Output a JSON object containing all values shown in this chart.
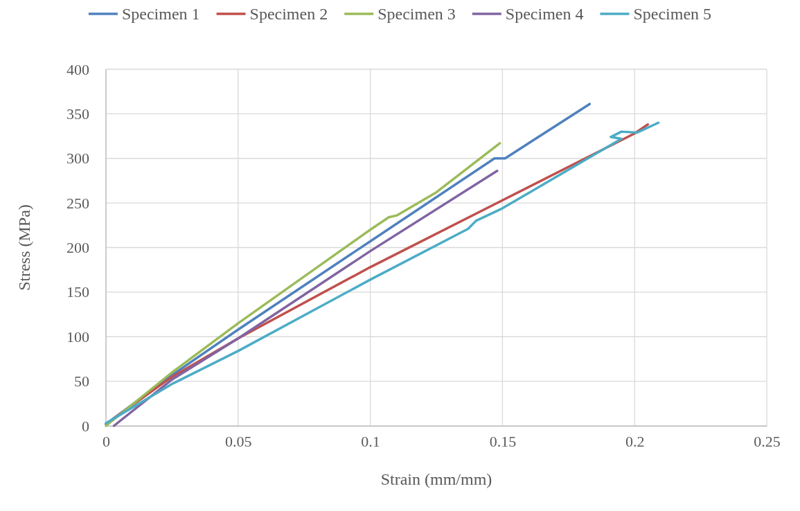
{
  "chart_data": {
    "type": "line",
    "xlabel": "Strain (mm/mm)",
    "ylabel": "Stress (MPa)",
    "xlim": [
      0,
      0.25
    ],
    "ylim": [
      0,
      400
    ],
    "xticks": [
      0,
      0.05,
      0.1,
      0.15,
      0.2,
      0.25
    ],
    "yticks": [
      0,
      50,
      100,
      150,
      200,
      250,
      300,
      350,
      400
    ],
    "grid": true,
    "legend": "top",
    "marker": "none",
    "line_style": "solid",
    "series": [
      {
        "name": "Specimen 1",
        "color": "#4f81bd",
        "x": [
          0,
          0.025,
          0.05,
          0.1,
          0.147,
          0.151,
          0.183
        ],
        "values": [
          2,
          57,
          108,
          207,
          300,
          300,
          361
        ]
      },
      {
        "name": "Specimen 2",
        "color": "#c0504d",
        "x": [
          0,
          0.025,
          0.05,
          0.1,
          0.15,
          0.2,
          0.205
        ],
        "values": [
          2,
          55,
          98,
          178,
          253,
          328,
          338
        ]
      },
      {
        "name": "Specimen 3",
        "color": "#9bbb59",
        "x": [
          0,
          0.025,
          0.05,
          0.1,
          0.107,
          0.11,
          0.125,
          0.149
        ],
        "values": [
          0,
          60,
          115,
          220,
          234,
          236,
          262,
          317
        ]
      },
      {
        "name": "Specimen 4",
        "color": "#8064a2",
        "x": [
          0.003,
          0.025,
          0.05,
          0.1,
          0.148
        ],
        "values": [
          0,
          52,
          98,
          196,
          286
        ]
      },
      {
        "name": "Specimen 5",
        "color": "#4bacc6",
        "x": [
          0,
          0.025,
          0.05,
          0.1,
          0.137,
          0.14,
          0.15,
          0.195,
          0.191,
          0.195,
          0.201,
          0.209
        ],
        "values": [
          3,
          47,
          84,
          164,
          221,
          230,
          244,
          322,
          324,
          330,
          329,
          340
        ]
      }
    ]
  }
}
